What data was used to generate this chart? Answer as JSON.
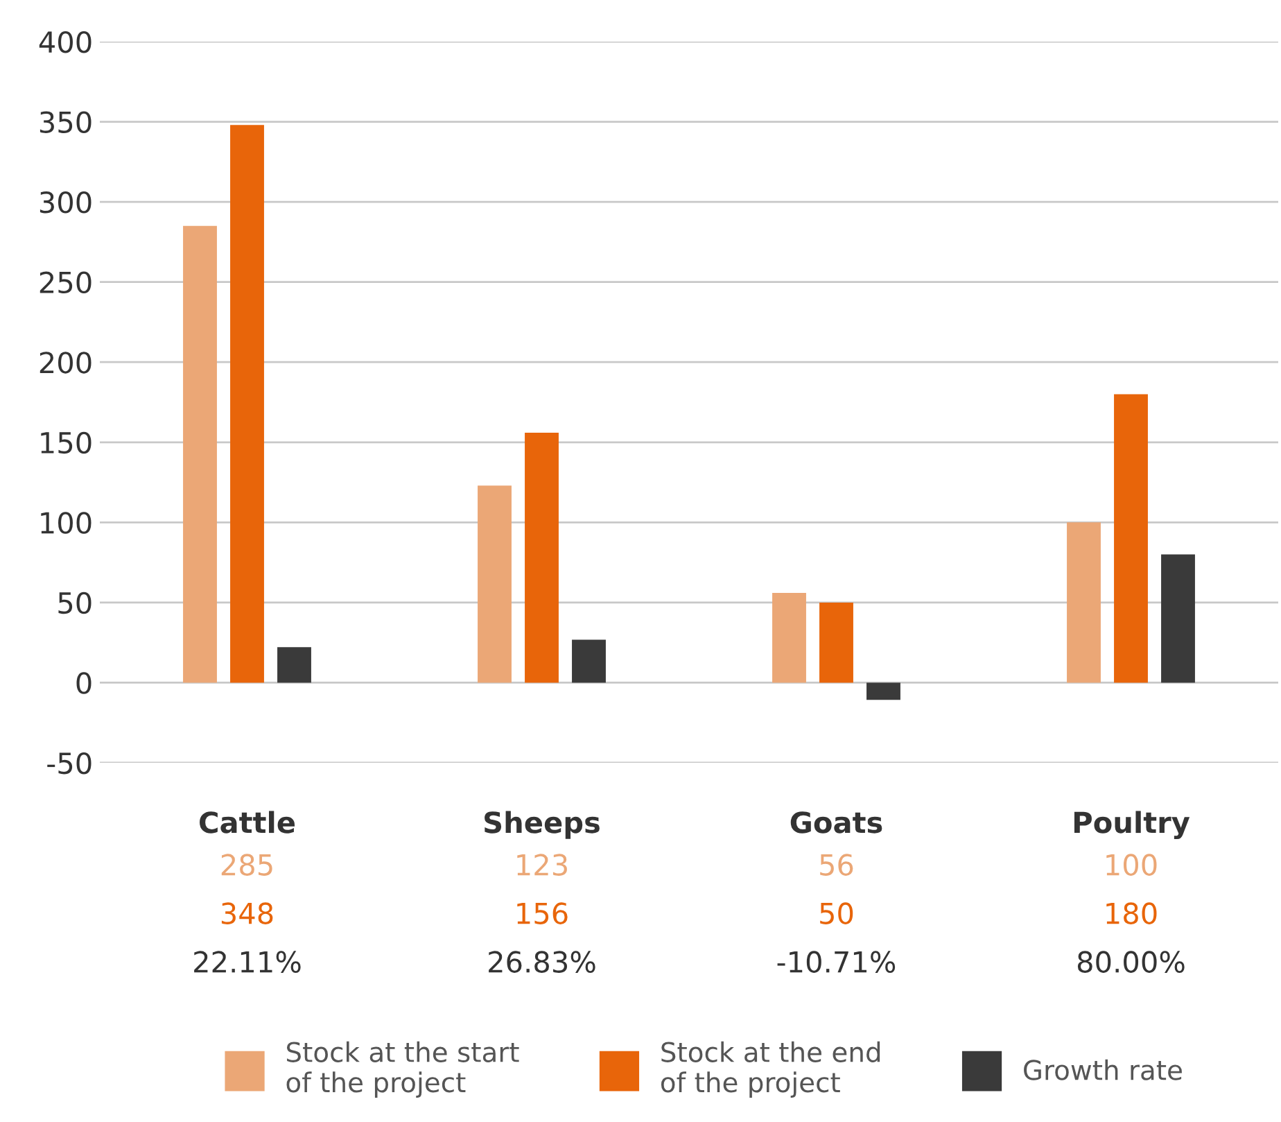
{
  "chart_data": {
    "type": "bar",
    "categories": [
      "Cattle",
      "Sheeps",
      "Goats",
      "Poultry"
    ],
    "series": [
      {
        "name": "Stock at the start\nof the project",
        "color": "#eba776",
        "values": [
          285,
          123,
          56,
          100
        ],
        "value_labels": [
          "285",
          "123",
          "56",
          "100"
        ]
      },
      {
        "name": "Stock at the end\nof the project",
        "color": "#e8650a",
        "values": [
          348,
          156,
          50,
          180
        ],
        "value_labels": [
          "348",
          "156",
          "50",
          "180"
        ]
      },
      {
        "name": "Growth rate",
        "color": "#3a3a3a",
        "values": [
          22.11,
          26.83,
          -10.71,
          80.0
        ],
        "value_labels": [
          "22.11%",
          "26.83%",
          "-10.71%",
          "80.00%"
        ]
      }
    ],
    "ylim": [
      -50,
      400
    ],
    "yticks": [
      -50,
      0,
      50,
      100,
      150,
      200,
      250,
      300,
      350,
      400
    ],
    "grid": "y",
    "legend": "bottom"
  }
}
